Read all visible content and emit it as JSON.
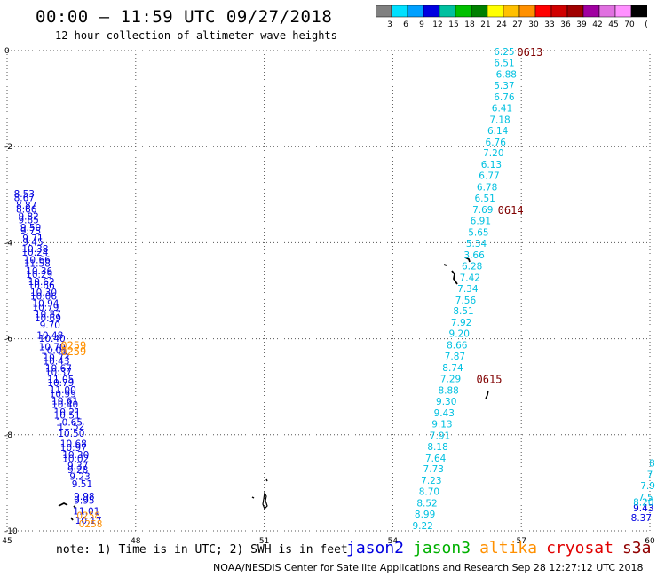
{
  "header": {
    "title": "00:00 – 11:59 UTC 09/27/2018",
    "subtitle": "12 hour collection of altimeter wave heights"
  },
  "colorbar": {
    "labels": [
      "3",
      "6",
      "9",
      "12",
      "15",
      "18",
      "21",
      "24",
      "27",
      "30",
      "33",
      "36",
      "39",
      "42",
      "45",
      "70",
      "(ft)"
    ],
    "colors": [
      "#808080",
      "#00e0ff",
      "#00a0ff",
      "#0000e0",
      "#00c0a0",
      "#00c000",
      "#008000",
      "#ffff00",
      "#ffc000",
      "#ff9000",
      "#ff0000",
      "#d00000",
      "#a00000",
      "#a000a0",
      "#e070e0",
      "#ff90ff",
      "#000000"
    ]
  },
  "footer": {
    "note": "note:  1) Time is in UTC;  2) SWH is in feet",
    "satellites": [
      {
        "name": "jason2",
        "color": "#0000e0"
      },
      {
        "name": "jason3",
        "color": "#00b000"
      },
      {
        "name": "altika",
        "color": "#ff9000"
      },
      {
        "name": "cryosat",
        "color": "#e00000"
      },
      {
        "name": "s3a",
        "color": "#900000"
      }
    ],
    "credit": "NOAA/NESDIS Center for Satellite Applications and Research    Sep 28 12:27:12 UTC 2018"
  },
  "chart_data": {
    "type": "scatter",
    "xlim": [
      45,
      60
    ],
    "ylim": [
      -10,
      0
    ],
    "xticks": [
      "45",
      "48",
      "51",
      "54",
      "57",
      "60"
    ],
    "yticks": [
      "0",
      "-2",
      "-4",
      "-6",
      "-8",
      "-10"
    ],
    "grid": true,
    "series": [
      {
        "name": "jason2",
        "color": "#0000e0",
        "points": [
          [
            45.4,
            -2.98,
            "8.53"
          ],
          [
            45.4,
            -3.06,
            "8.67"
          ],
          [
            45.45,
            -3.22,
            "8.87"
          ],
          [
            45.45,
            -3.3,
            "8.66"
          ],
          [
            45.5,
            -3.45,
            "9.82"
          ],
          [
            45.5,
            -3.52,
            "9.85"
          ],
          [
            45.55,
            -3.68,
            "9.50"
          ],
          [
            45.55,
            -3.75,
            "9.75"
          ],
          [
            45.6,
            -3.9,
            "9.71"
          ],
          [
            45.6,
            -3.98,
            "9.45"
          ],
          [
            45.65,
            -4.12,
            "10.38"
          ],
          [
            45.65,
            -4.2,
            "10.24"
          ],
          [
            45.7,
            -4.35,
            "10.66"
          ],
          [
            45.7,
            -4.43,
            "11.58"
          ],
          [
            45.75,
            -4.58,
            "10.36"
          ],
          [
            45.75,
            -4.66,
            "10.29"
          ],
          [
            45.8,
            -4.81,
            "10.62"
          ],
          [
            45.8,
            -4.88,
            "10.66"
          ],
          [
            45.85,
            -5.03,
            "10.30"
          ],
          [
            45.85,
            -5.11,
            "10.06"
          ],
          [
            45.9,
            -5.26,
            "10.94"
          ],
          [
            45.9,
            -5.34,
            "10.79"
          ],
          [
            45.95,
            -5.48,
            "10.87"
          ],
          [
            45.95,
            -5.56,
            "10.69"
          ],
          [
            46.0,
            -5.71,
            "9.70"
          ],
          [
            46.0,
            -5.92,
            "10.48"
          ],
          [
            46.05,
            -5.99,
            "10.40"
          ],
          [
            46.05,
            -6.16,
            "10.70"
          ],
          [
            46.1,
            -6.24,
            "10.01"
          ],
          [
            46.15,
            -6.39,
            "10.73"
          ],
          [
            46.15,
            -6.46,
            "10.43"
          ],
          [
            46.2,
            -6.61,
            "10.67"
          ],
          [
            46.2,
            -6.69,
            "10.37"
          ],
          [
            46.25,
            -6.84,
            "11.05"
          ],
          [
            46.25,
            -6.91,
            "10.79"
          ],
          [
            46.3,
            -7.06,
            "11.00"
          ],
          [
            46.3,
            -7.14,
            "10.99"
          ],
          [
            46.35,
            -7.29,
            "10.61"
          ],
          [
            46.35,
            -7.37,
            "10.40"
          ],
          [
            46.4,
            -7.52,
            "10.21"
          ],
          [
            46.4,
            -7.59,
            "10.51"
          ],
          [
            46.45,
            -7.74,
            "10.65"
          ],
          [
            46.5,
            -7.82,
            "11.52"
          ],
          [
            46.5,
            -7.97,
            "10.50"
          ],
          [
            46.55,
            -8.18,
            "10.68"
          ],
          [
            46.55,
            -8.26,
            "10.97"
          ],
          [
            46.6,
            -8.41,
            "10.30"
          ],
          [
            46.6,
            -8.49,
            "10.02"
          ],
          [
            46.65,
            -8.64,
            "9.37"
          ],
          [
            46.65,
            -8.72,
            "9.28"
          ],
          [
            46.7,
            -8.86,
            "9.23"
          ],
          [
            46.75,
            -9.02,
            "9.51"
          ],
          [
            46.8,
            -9.28,
            "9.98"
          ],
          [
            46.8,
            -9.36,
            "9.95"
          ],
          [
            46.85,
            -9.58,
            "11.01"
          ],
          [
            46.9,
            -9.78,
            "10.17"
          ],
          [
            59.85,
            -9.52,
            "9.43"
          ],
          [
            59.8,
            -9.72,
            "8.37"
          ]
        ]
      },
      {
        "name": "jason3",
        "color": "#00c0e0",
        "points": [
          [
            56.6,
            -0.02,
            "6.25"
          ],
          [
            56.6,
            -0.25,
            "6.51"
          ],
          [
            56.65,
            -0.49,
            "6.88"
          ],
          [
            56.6,
            -0.72,
            "5.37"
          ],
          [
            56.6,
            -0.96,
            "6.76"
          ],
          [
            56.55,
            -1.19,
            "6.41"
          ],
          [
            56.5,
            -1.43,
            "7.18"
          ],
          [
            56.45,
            -1.66,
            "6.14"
          ],
          [
            56.4,
            -1.9,
            "6.76"
          ],
          [
            56.35,
            -2.13,
            "7.20"
          ],
          [
            56.3,
            -2.37,
            "6.13"
          ],
          [
            56.25,
            -2.6,
            "6.77"
          ],
          [
            56.2,
            -2.84,
            "6.78"
          ],
          [
            56.15,
            -3.07,
            "6.51"
          ],
          [
            56.1,
            -3.31,
            "7.69"
          ],
          [
            56.05,
            -3.54,
            "6.91"
          ],
          [
            56.0,
            -3.78,
            "5.65"
          ],
          [
            55.95,
            -4.01,
            "5.34"
          ],
          [
            55.9,
            -4.25,
            "3.66"
          ],
          [
            55.85,
            -4.48,
            "6.28"
          ],
          [
            55.8,
            -4.72,
            "7.42"
          ],
          [
            55.75,
            -4.95,
            "7.34"
          ],
          [
            55.7,
            -5.19,
            "7.56"
          ],
          [
            55.65,
            -5.42,
            "8.51"
          ],
          [
            55.6,
            -5.66,
            "7.92"
          ],
          [
            55.55,
            -5.89,
            "9.20"
          ],
          [
            55.5,
            -6.13,
            "8.66"
          ],
          [
            55.45,
            -6.36,
            "7.87"
          ],
          [
            55.4,
            -6.6,
            "8.74"
          ],
          [
            55.35,
            -6.83,
            "7.29"
          ],
          [
            55.3,
            -7.07,
            "8.88"
          ],
          [
            55.25,
            -7.3,
            "9.30"
          ],
          [
            55.2,
            -7.54,
            "9.43"
          ],
          [
            55.15,
            -7.77,
            "9.13"
          ],
          [
            55.1,
            -8.01,
            "7.91"
          ],
          [
            55.05,
            -8.24,
            "8.18"
          ],
          [
            55.0,
            -8.48,
            "7.64"
          ],
          [
            54.95,
            -8.71,
            "7.73"
          ],
          [
            54.9,
            -8.95,
            "7.23"
          ],
          [
            54.85,
            -9.18,
            "8.70"
          ],
          [
            54.8,
            -9.42,
            "8.52"
          ],
          [
            54.75,
            -9.65,
            "8.99"
          ],
          [
            54.7,
            -9.89,
            "9.22"
          ],
          [
            60.05,
            -8.59,
            "8"
          ],
          [
            60.0,
            -8.83,
            "7"
          ],
          [
            59.95,
            -9.06,
            "7.9"
          ],
          [
            59.9,
            -9.3,
            "7.5"
          ],
          [
            59.85,
            -9.4,
            "8.20"
          ]
        ]
      },
      {
        "name": "altika",
        "color": "#ff9000",
        "points": [
          [
            46.9,
            -9.68,
            "0258"
          ],
          [
            46.95,
            -9.85,
            "0258"
          ]
        ]
      }
    ],
    "time_labels": [
      {
        "x": 57.2,
        "y": -0.02,
        "text": "0613",
        "color": "#800000"
      },
      {
        "x": 56.75,
        "y": -3.31,
        "text": "0614",
        "color": "#800000"
      },
      {
        "x": 56.25,
        "y": -6.83,
        "text": "0615",
        "color": "#800000"
      },
      {
        "x": 46.55,
        "y": -6.13,
        "text": "0259",
        "color": "#ff9000"
      },
      {
        "x": 46.55,
        "y": -6.25,
        "text": "0259",
        "color": "#ff9000"
      }
    ]
  }
}
